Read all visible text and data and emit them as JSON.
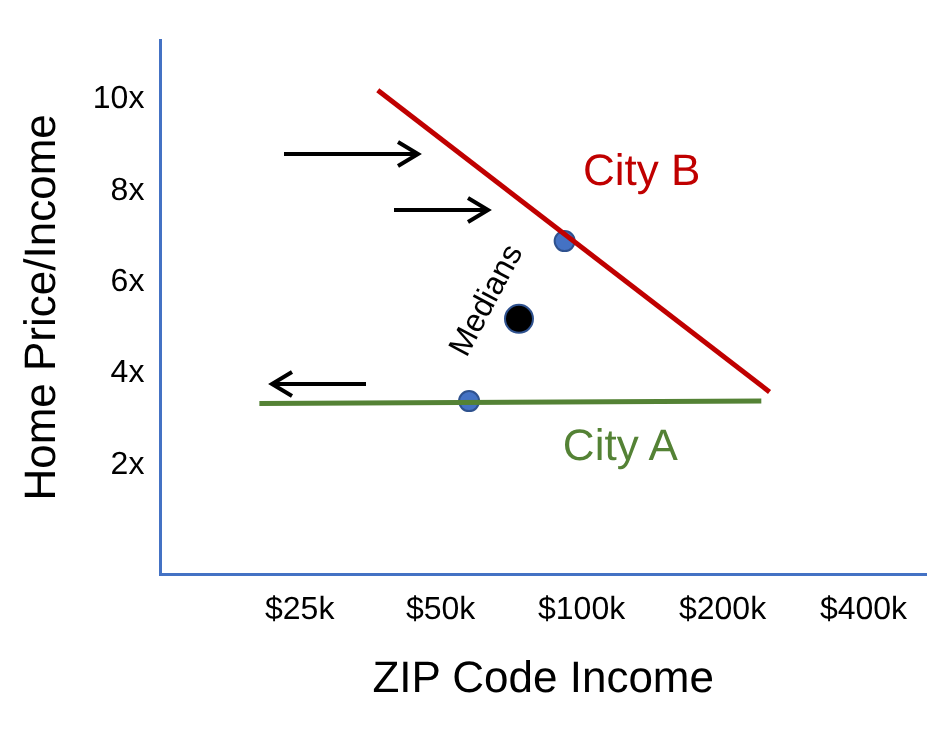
{
  "chart_data": {
    "type": "line",
    "xlabel": "ZIP Code Income",
    "annotations": [
      {
        "text": "Medians",
        "x": 73.5,
        "y": 5.2
      }
    ],
    "ylabel": "Home Price/Income",
    "log": "x",
    "grid": false,
    "legend": false,
    "xlim": [
      12.6,
      544
    ],
    "xticks": [
      {
        "value": 25,
        "label": "$25k"
      },
      {
        "value": 50,
        "label": "$50k"
      },
      {
        "value": 100,
        "label": "$100k"
      },
      {
        "value": 200,
        "label": "$200k"
      },
      {
        "value": 400,
        "label": "$400k"
      }
    ],
    "ylim": [
      -0.4,
      11.3
    ],
    "yticks": [
      {
        "value": 2,
        "label": "2x"
      },
      {
        "value": 4,
        "label": "4x"
      },
      {
        "value": 6,
        "label": "6x"
      },
      {
        "value": 8,
        "label": "8x"
      },
      {
        "value": 10,
        "label": "10x"
      }
    ],
    "series": [
      {
        "name": "City B",
        "color": "#c00000",
        "marker": "none",
        "x": [
          36.7,
          252
        ],
        "values": [
          10.2,
          3.6
        ]
      },
      {
        "name": "City A",
        "color": "#548235",
        "marker": "none",
        "x": [
          20.5,
          242
        ],
        "values": [
          3.35,
          3.4
        ]
      },
      {
        "type": "scatter",
        "color": "#4472c4",
        "marker": "circle",
        "x": [
          57.5,
          92
        ],
        "values": [
          3.4,
          6.9
        ]
      },
      {
        "type": "scatter",
        "color": "#000000",
        "marker": "circle",
        "x": [
          73.5
        ],
        "values": [
          5.2
        ]
      }
    ]
  }
}
